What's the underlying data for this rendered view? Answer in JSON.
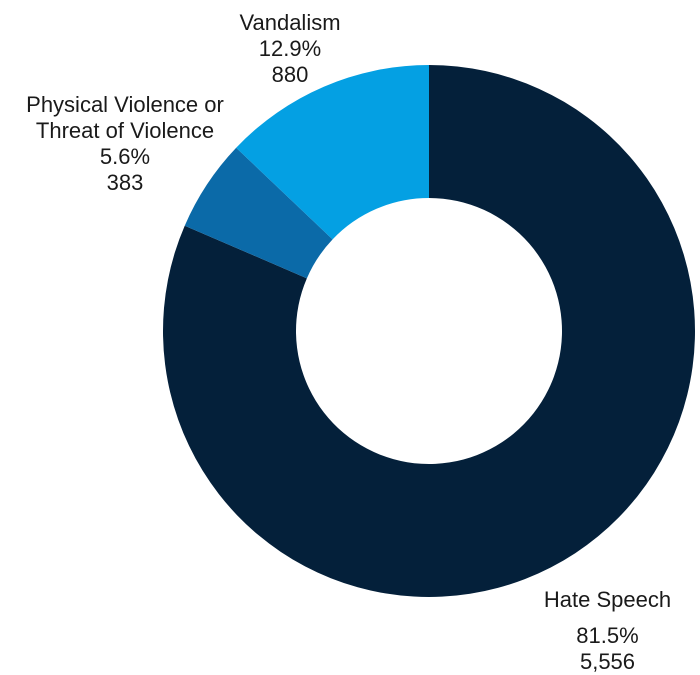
{
  "chart_data": {
    "type": "pie",
    "donut": true,
    "legend": "none",
    "slices": [
      {
        "name": "Hate Speech",
        "percent": "81.5%",
        "count": "5,556",
        "value": 5556,
        "color": "#04203a"
      },
      {
        "name": "Physical Violence or Threat of Violence",
        "name_lines": [
          "Physical Violence or",
          "Threat of Violence"
        ],
        "percent": "5.6%",
        "count": "383",
        "value": 383,
        "color": "#0b6aa8"
      },
      {
        "name": "Vandalism",
        "percent": "12.9%",
        "count": "880",
        "value": 880,
        "color": "#04a0e3"
      }
    ]
  }
}
